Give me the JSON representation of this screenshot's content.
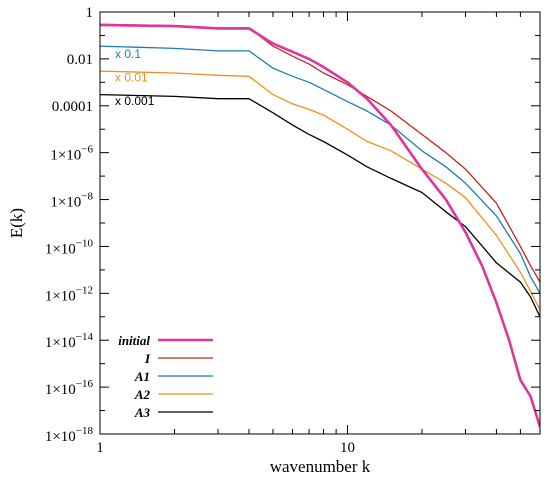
{
  "chart_data": {
    "type": "line",
    "xlabel": "wavenumber k",
    "ylabel": "E(k)",
    "xscale": "log",
    "yscale": "log",
    "xlim": [
      1,
      60
    ],
    "ylim": [
      1e-18,
      1
    ],
    "grid": false,
    "legend_position": "bottom-left",
    "x_ticks": [
      {
        "value": 1,
        "label": "1"
      },
      {
        "value": 10,
        "label": "10"
      }
    ],
    "y_ticks": [
      {
        "value": 1,
        "label": "1"
      },
      {
        "value": 0.01,
        "label": "0.01"
      },
      {
        "value": 0.0001,
        "label": "0.0001"
      },
      {
        "value": 1e-06,
        "label": "1×10",
        "exp": "−6"
      },
      {
        "value": 1e-08,
        "label": "1×10",
        "exp": "−8"
      },
      {
        "value": 1e-10,
        "label": "1×10",
        "exp": "−10"
      },
      {
        "value": 1e-12,
        "label": "1×10",
        "exp": "−12"
      },
      {
        "value": 1e-14,
        "label": "1×10",
        "exp": "−14"
      },
      {
        "value": 1e-16,
        "label": "1×10",
        "exp": "−16"
      },
      {
        "value": 1e-18,
        "label": "1×10",
        "exp": "−18"
      }
    ],
    "annotations": [
      {
        "text": "x 0.1",
        "x": 1.15,
        "y": 0.011,
        "color": "#1a7fa8"
      },
      {
        "text": "x 0.01",
        "x": 1.15,
        "y": 0.0011,
        "color": "#f0901e"
      },
      {
        "text": "x 0.001",
        "x": 1.15,
        "y": 0.00011,
        "color": "#000000"
      }
    ],
    "series": [
      {
        "name": "initial",
        "color": "#e0359a",
        "width": 2.6,
        "x": [
          1,
          2,
          3,
          4,
          5,
          6,
          7,
          8,
          10,
          12,
          15,
          20,
          25,
          30,
          35,
          40,
          45,
          50,
          55,
          60
        ],
        "y": [
          0.28,
          0.25,
          0.2,
          0.2,
          0.045,
          0.02,
          0.01,
          0.0045,
          0.001,
          0.0002,
          1.5e-05,
          2e-07,
          1e-08,
          4e-10,
          1.5e-11,
          4e-13,
          1e-14,
          2e-16,
          4e-17,
          2e-18
        ]
      },
      {
        "name": "I",
        "color": "#c4231c",
        "width": 1.3,
        "x": [
          1,
          2,
          3,
          4,
          5,
          6,
          7,
          8,
          10,
          12,
          15,
          20,
          25,
          30,
          40,
          50,
          55,
          60
        ],
        "y": [
          0.3,
          0.26,
          0.21,
          0.21,
          0.035,
          0.013,
          0.006,
          0.0025,
          0.0008,
          0.00025,
          6e-05,
          6e-06,
          1e-06,
          2e-07,
          7e-09,
          1e-10,
          1.5e-11,
          3e-12
        ]
      },
      {
        "name": "A1",
        "color": "#1a7fa8",
        "width": 1.3,
        "x": [
          1,
          2,
          3,
          4,
          5,
          6,
          7,
          8,
          10,
          12,
          15,
          20,
          25,
          30,
          40,
          50,
          55,
          60
        ],
        "y": [
          0.035,
          0.028,
          0.022,
          0.022,
          0.004,
          0.0018,
          0.001,
          0.0005,
          0.00015,
          6e-05,
          1.5e-05,
          1.2e-06,
          2.5e-07,
          5e-08,
          2e-09,
          5e-11,
          5e-12,
          1e-12
        ]
      },
      {
        "name": "A2",
        "color": "#f0901e",
        "width": 1.3,
        "x": [
          1,
          2,
          3,
          4,
          5,
          6,
          7,
          8,
          10,
          12,
          15,
          20,
          25,
          30,
          40,
          50,
          55,
          60
        ],
        "y": [
          0.003,
          0.0025,
          0.002,
          0.0018,
          0.0003,
          0.00012,
          7e-05,
          4e-05,
          1e-05,
          3e-06,
          1.2e-06,
          2e-07,
          5e-08,
          1.2e-08,
          3e-10,
          8e-12,
          1.2e-12,
          2e-13
        ]
      },
      {
        "name": "A3",
        "color": "#000000",
        "width": 1.3,
        "x": [
          1,
          2,
          3,
          4,
          5,
          6,
          7,
          8,
          10,
          12,
          15,
          20,
          25,
          30,
          40,
          50,
          55,
          60
        ],
        "y": [
          0.0003,
          0.00025,
          0.0002,
          0.0002,
          5e-05,
          1.5e-05,
          6e-06,
          3e-06,
          8e-07,
          2.5e-07,
          8e-08,
          2e-08,
          3e-09,
          7e-10,
          2e-11,
          3e-12,
          7e-13,
          1e-13
        ]
      }
    ]
  }
}
